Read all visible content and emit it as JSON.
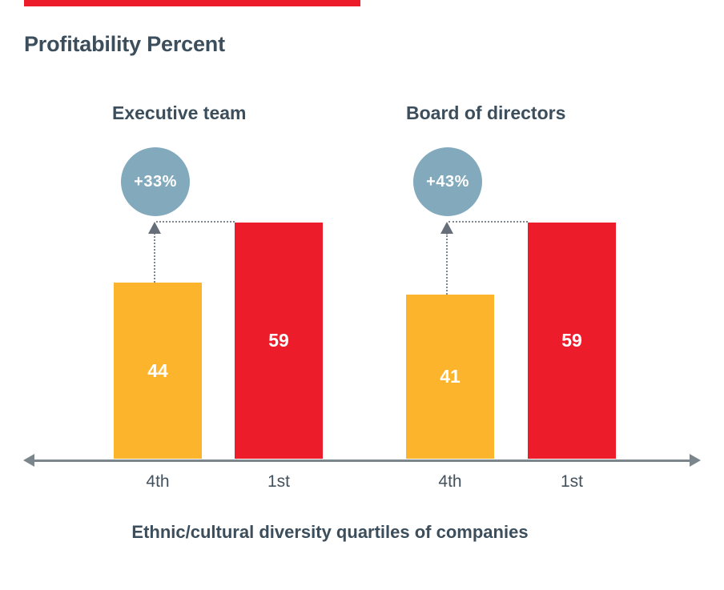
{
  "title": "Profitability Percent",
  "xaxis_title": "Ethnic/cultural diversity quartiles of companies",
  "colors": {
    "bar_4th_quartile": "#FCB42D",
    "bar_1st_quartile": "#ED1C2B",
    "badge_circle": "#82A9BC",
    "top_accent_rule": "#ED1C2B",
    "heading_text": "#3C4E5C",
    "axis_gray": "#7B858C",
    "bar_value_text": "#ffffff"
  },
  "chart_data": {
    "type": "bar",
    "title": "Profitability Percent",
    "xlabel": "Ethnic/cultural diversity quartiles of companies",
    "ylabel": "",
    "ylim": [
      0,
      65
    ],
    "grid": false,
    "legend": "none",
    "value_labels": "inside-center",
    "groups": [
      {
        "name": "Executive team",
        "delta_badge": "+33%",
        "categories": [
          "4th",
          "1st"
        ],
        "values": [
          44,
          59
        ]
      },
      {
        "name": "Board of directors",
        "delta_badge": "+43%",
        "categories": [
          "4th",
          "1st"
        ],
        "values": [
          41,
          59
        ]
      }
    ],
    "bar_colors": {
      "4th": "#FCB42D",
      "1st": "#ED1C2B"
    },
    "annotations": [
      "dotted connector from top of 1st-quartile bar to arrow above 4th-quartile bar, pointing up to delta badge (Executive team)",
      "dotted connector from top of 1st-quartile bar to arrow above 4th-quartile bar, pointing up to delta badge (Board of directors)"
    ]
  }
}
